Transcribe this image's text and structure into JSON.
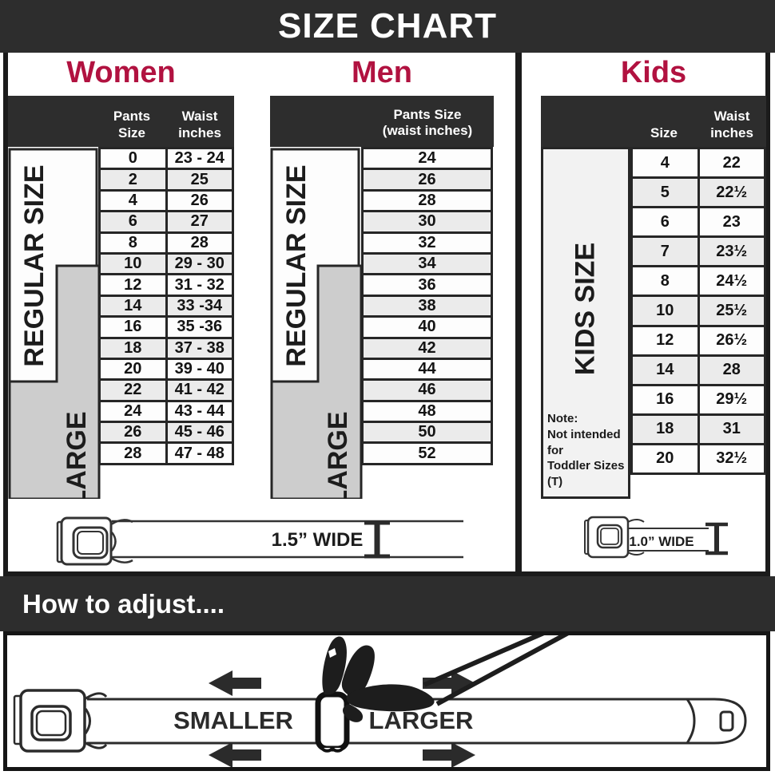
{
  "banner": {
    "title": "SIZE CHART"
  },
  "sections": {
    "women": {
      "title": "Women",
      "header": {
        "col1": "Pants Size",
        "col2_line1": "Waist",
        "col2_line2": "inches"
      },
      "labels": {
        "regular": "REGULAR SIZE",
        "xlarge": "X-LARGE"
      },
      "rows": [
        [
          "0",
          "23 - 24"
        ],
        [
          "2",
          "25"
        ],
        [
          "4",
          "26"
        ],
        [
          "6",
          "27"
        ],
        [
          "8",
          "28"
        ],
        [
          "10",
          "29 - 30"
        ],
        [
          "12",
          "31 - 32"
        ],
        [
          "14",
          "33 -34"
        ],
        [
          "16",
          "35 -36"
        ],
        [
          "18",
          "37 - 38"
        ],
        [
          "20",
          "39 - 40"
        ],
        [
          "22",
          "41 - 42"
        ],
        [
          "24",
          "43 - 44"
        ],
        [
          "26",
          "45 - 46"
        ],
        [
          "28",
          "47 - 48"
        ]
      ],
      "belt_label": "1.5” WIDE"
    },
    "men": {
      "title": "Men",
      "header": {
        "line1": "Pants Size",
        "line2": "(waist inches)"
      },
      "labels": {
        "regular": "REGULAR SIZE",
        "xlarge": "X-LARGE"
      },
      "rows": [
        "24",
        "26",
        "28",
        "30",
        "32",
        "34",
        "36",
        "38",
        "40",
        "42",
        "44",
        "46",
        "48",
        "50",
        "52"
      ]
    },
    "kids": {
      "title": "Kids",
      "header": {
        "col1": "Size",
        "col2_line1": "Waist",
        "col2_line2": "inches"
      },
      "label": "KIDS SIZE",
      "note_line1": "Note:",
      "note_line2": "Not intended for",
      "note_line3": "Toddler Sizes (T)",
      "rows": [
        [
          "4",
          "22"
        ],
        [
          "5",
          "22½"
        ],
        [
          "6",
          "23"
        ],
        [
          "7",
          "23½"
        ],
        [
          "8",
          "24½"
        ],
        [
          "10",
          "25½"
        ],
        [
          "12",
          "26½"
        ],
        [
          "14",
          "28"
        ],
        [
          "16",
          "29½"
        ],
        [
          "18",
          "31"
        ],
        [
          "20",
          "32½"
        ]
      ],
      "belt_label": "1.0” WIDE"
    }
  },
  "adjust": {
    "title": "How to adjust....",
    "smaller": "SMALLER",
    "larger": "LARGER"
  },
  "colors": {
    "accent": "#b11240",
    "dark": "#2d2d2d",
    "row_alt": "#ebebeb",
    "xlarge_gray": "#cdcdcd"
  }
}
